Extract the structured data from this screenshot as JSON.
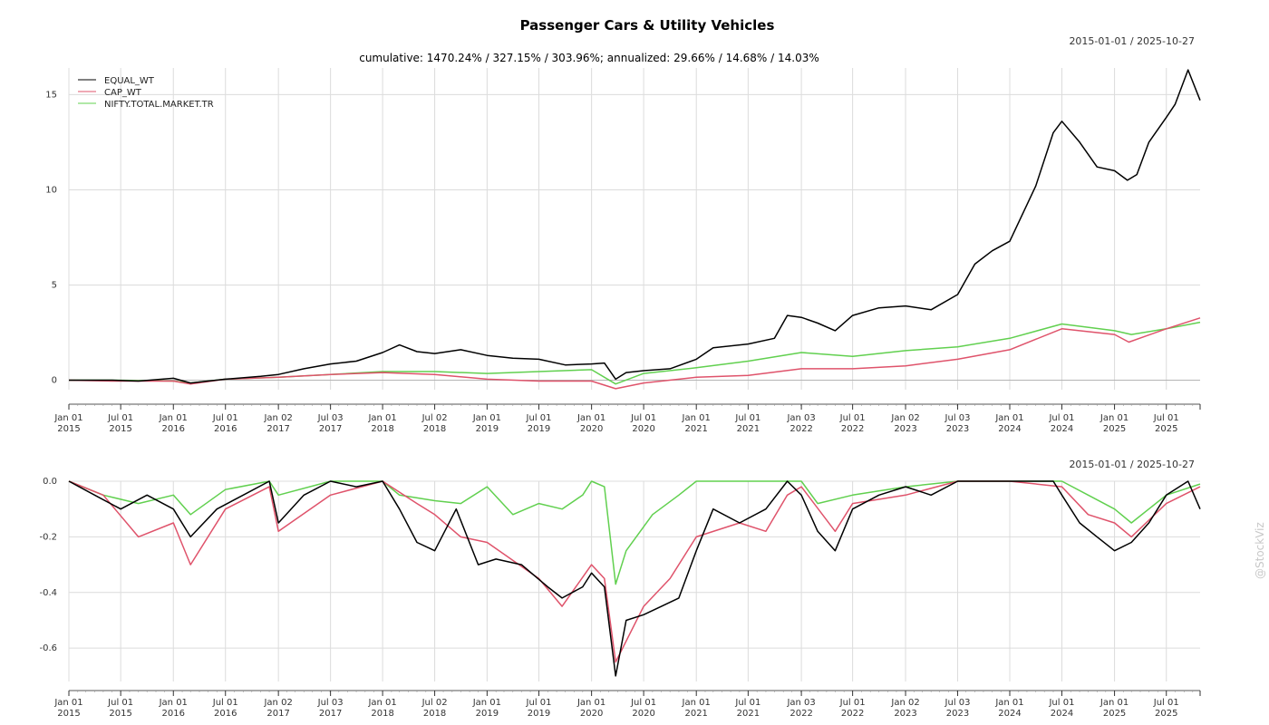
{
  "title": "Passenger Cars & Utility Vehicles",
  "subtitle": "cumulative: 1470.24% / 327.15% / 303.96%; annualized: 29.66% / 14.68% / 14.03%",
  "date_range": "2015-01-01 / 2025-10-27",
  "watermark": "@StockViz",
  "colors": {
    "EQUAL_WT": "#000000",
    "CAP_WT": "#df536b",
    "NIFTY.TOTAL.MARKET.TR": "#61d04f",
    "grid": "#dcdcdc"
  },
  "chart_data": [
    {
      "type": "line",
      "panel": "cumulative returns",
      "x_start": "2015-01-01",
      "x_end": "2025-10-27",
      "ylim": [
        -0.5,
        16.4
      ],
      "yticks": [
        0,
        5,
        10,
        15
      ],
      "ytick_labels": [
        "0",
        "5",
        "10",
        "15"
      ],
      "grid": true,
      "legend_position": "top-left",
      "xtick_labels": [
        [
          "Jan 01",
          "2015"
        ],
        [
          "Jul 01",
          "2015"
        ],
        [
          "Jan 01",
          "2016"
        ],
        [
          "Jul 01",
          "2016"
        ],
        [
          "Jan 02",
          "2017"
        ],
        [
          "Jul 03",
          "2017"
        ],
        [
          "Jan 01",
          "2018"
        ],
        [
          "Jul 02",
          "2018"
        ],
        [
          "Jan 01",
          "2019"
        ],
        [
          "Jul 01",
          "2019"
        ],
        [
          "Jan 01",
          "2020"
        ],
        [
          "Jul 01",
          "2020"
        ],
        [
          "Jan 01",
          "2021"
        ],
        [
          "Jul 01",
          "2021"
        ],
        [
          "Jan 03",
          "2022"
        ],
        [
          "Jul 01",
          "2022"
        ],
        [
          "Jan 02",
          "2023"
        ],
        [
          "Jul 03",
          "2023"
        ],
        [
          "Jan 01",
          "2024"
        ],
        [
          "Jul 01",
          "2024"
        ],
        [
          "Jan 01",
          "2025"
        ],
        [
          "Jul 01",
          "2025"
        ]
      ],
      "series": [
        {
          "name": "EQUAL_WT",
          "x": [
            "2015-01-01",
            "2015-06-01",
            "2015-09-01",
            "2016-01-01",
            "2016-03-01",
            "2016-07-01",
            "2016-11-01",
            "2017-01-02",
            "2017-04-01",
            "2017-07-03",
            "2017-10-01",
            "2018-01-01",
            "2018-03-01",
            "2018-05-01",
            "2018-07-02",
            "2018-10-01",
            "2019-01-01",
            "2019-04-01",
            "2019-07-01",
            "2019-10-01",
            "2020-01-01",
            "2020-02-15",
            "2020-03-25",
            "2020-05-01",
            "2020-07-01",
            "2020-10-01",
            "2021-01-01",
            "2021-03-01",
            "2021-07-01",
            "2021-10-01",
            "2021-11-15",
            "2022-01-03",
            "2022-03-01",
            "2022-05-01",
            "2022-07-01",
            "2022-10-01",
            "2023-01-02",
            "2023-04-01",
            "2023-07-03",
            "2023-09-01",
            "2023-11-01",
            "2024-01-01",
            "2024-04-01",
            "2024-06-01",
            "2024-07-01",
            "2024-09-01",
            "2024-11-01",
            "2025-01-01",
            "2025-02-15",
            "2025-03-20",
            "2025-05-01",
            "2025-07-01",
            "2025-08-01",
            "2025-09-15",
            "2025-10-27"
          ],
          "values": [
            0.0,
            0.0,
            -0.05,
            0.1,
            -0.15,
            0.05,
            0.2,
            0.3,
            0.6,
            0.85,
            1.0,
            1.45,
            1.85,
            1.5,
            1.4,
            1.6,
            1.3,
            1.15,
            1.1,
            0.8,
            0.85,
            0.9,
            0.05,
            0.4,
            0.5,
            0.6,
            1.1,
            1.7,
            1.9,
            2.2,
            3.4,
            3.3,
            3.0,
            2.6,
            3.4,
            3.8,
            3.9,
            3.7,
            4.5,
            6.1,
            6.8,
            7.3,
            10.2,
            13.0,
            13.6,
            12.5,
            11.2,
            11.0,
            10.5,
            10.8,
            12.5,
            13.8,
            14.5,
            16.3,
            14.7
          ]
        },
        {
          "name": "CAP_WT",
          "x": [
            "2015-01-01",
            "2015-06-01",
            "2016-01-01",
            "2016-03-01",
            "2016-07-01",
            "2017-01-02",
            "2017-07-03",
            "2018-01-01",
            "2018-07-02",
            "2019-01-01",
            "2019-07-01",
            "2020-01-01",
            "2020-03-25",
            "2020-07-01",
            "2021-01-01",
            "2021-07-01",
            "2022-01-03",
            "2022-07-01",
            "2023-01-02",
            "2023-07-03",
            "2024-01-01",
            "2024-07-01",
            "2025-01-01",
            "2025-02-20",
            "2025-07-01",
            "2025-10-27"
          ],
          "values": [
            0.0,
            -0.05,
            -0.05,
            -0.2,
            0.05,
            0.15,
            0.3,
            0.4,
            0.3,
            0.05,
            -0.05,
            -0.05,
            -0.45,
            -0.15,
            0.15,
            0.25,
            0.6,
            0.6,
            0.75,
            1.1,
            1.6,
            2.7,
            2.4,
            2.0,
            2.7,
            3.27
          ]
        },
        {
          "name": "NIFTY.TOTAL.MARKET.TR",
          "x": [
            "2015-01-01",
            "2015-06-01",
            "2016-01-01",
            "2016-03-01",
            "2016-07-01",
            "2017-01-02",
            "2017-07-03",
            "2018-01-01",
            "2018-07-02",
            "2019-01-01",
            "2019-07-01",
            "2020-01-01",
            "2020-03-25",
            "2020-07-01",
            "2021-01-01",
            "2021-07-01",
            "2022-01-03",
            "2022-07-01",
            "2023-01-02",
            "2023-07-03",
            "2024-01-01",
            "2024-07-01",
            "2025-01-01",
            "2025-03-01",
            "2025-07-01",
            "2025-10-27"
          ],
          "values": [
            0.0,
            0.0,
            -0.05,
            -0.15,
            0.05,
            0.15,
            0.3,
            0.45,
            0.45,
            0.35,
            0.45,
            0.55,
            -0.2,
            0.35,
            0.65,
            1.0,
            1.45,
            1.25,
            1.55,
            1.75,
            2.2,
            2.95,
            2.6,
            2.4,
            2.7,
            3.04
          ]
        }
      ]
    },
    {
      "type": "line",
      "panel": "drawdown",
      "x_start": "2015-01-01",
      "x_end": "2025-10-27",
      "ylim": [
        -0.72,
        0.0
      ],
      "yticks": [
        0.0,
        -0.2,
        -0.4,
        -0.6
      ],
      "ytick_labels": [
        "0.0",
        "-0.2",
        "-0.4",
        "-0.6"
      ],
      "grid": true,
      "xtick_labels": [
        [
          "Jan 01",
          "2015"
        ],
        [
          "Jul 01",
          "2015"
        ],
        [
          "Jan 01",
          "2016"
        ],
        [
          "Jul 01",
          "2016"
        ],
        [
          "Jan 02",
          "2017"
        ],
        [
          "Jul 03",
          "2017"
        ],
        [
          "Jan 01",
          "2018"
        ],
        [
          "Jul 02",
          "2018"
        ],
        [
          "Jan 01",
          "2019"
        ],
        [
          "Jul 01",
          "2019"
        ],
        [
          "Jan 01",
          "2020"
        ],
        [
          "Jul 01",
          "2020"
        ],
        [
          "Jan 01",
          "2021"
        ],
        [
          "Jul 01",
          "2021"
        ],
        [
          "Jan 03",
          "2022"
        ],
        [
          "Jul 01",
          "2022"
        ],
        [
          "Jan 02",
          "2023"
        ],
        [
          "Jul 03",
          "2023"
        ],
        [
          "Jan 01",
          "2024"
        ],
        [
          "Jul 01",
          "2024"
        ],
        [
          "Jan 01",
          "2025"
        ],
        [
          "Jul 01",
          "2025"
        ]
      ],
      "series": [
        {
          "name": "EQUAL_WT",
          "x": [
            "2015-01-01",
            "2015-04-01",
            "2015-07-01",
            "2015-10-01",
            "2016-01-01",
            "2016-03-01",
            "2016-06-01",
            "2016-09-01",
            "2016-12-01",
            "2017-01-02",
            "2017-04-01",
            "2017-07-03",
            "2017-10-01",
            "2018-01-01",
            "2018-03-01",
            "2018-05-01",
            "2018-07-02",
            "2018-09-15",
            "2018-12-01",
            "2019-02-01",
            "2019-05-01",
            "2019-08-01",
            "2019-09-20",
            "2019-12-01",
            "2020-01-01",
            "2020-02-15",
            "2020-03-25",
            "2020-05-01",
            "2020-07-01",
            "2020-09-01",
            "2020-11-01",
            "2021-01-01",
            "2021-03-01",
            "2021-06-01",
            "2021-09-01",
            "2021-11-15",
            "2022-01-03",
            "2022-03-01",
            "2022-05-01",
            "2022-07-01",
            "2022-10-01",
            "2023-01-02",
            "2023-04-01",
            "2023-07-03",
            "2024-01-01",
            "2024-06-01",
            "2024-07-01",
            "2024-09-01",
            "2024-11-01",
            "2025-01-01",
            "2025-03-01",
            "2025-05-01",
            "2025-07-01",
            "2025-09-15",
            "2025-10-27"
          ],
          "values": [
            0.0,
            -0.05,
            -0.1,
            -0.05,
            -0.1,
            -0.2,
            -0.1,
            -0.05,
            0.0,
            -0.15,
            -0.05,
            0.0,
            -0.02,
            0.0,
            -0.1,
            -0.22,
            -0.25,
            -0.1,
            -0.3,
            -0.28,
            -0.3,
            -0.38,
            -0.42,
            -0.38,
            -0.33,
            -0.38,
            -0.7,
            -0.5,
            -0.48,
            -0.45,
            -0.42,
            -0.25,
            -0.1,
            -0.15,
            -0.1,
            0.0,
            -0.05,
            -0.18,
            -0.25,
            -0.1,
            -0.05,
            -0.02,
            -0.05,
            0.0,
            0.0,
            0.0,
            -0.05,
            -0.15,
            -0.2,
            -0.25,
            -0.22,
            -0.15,
            -0.05,
            0.0,
            -0.1
          ]
        },
        {
          "name": "CAP_WT",
          "x": [
            "2015-01-01",
            "2015-05-01",
            "2015-09-01",
            "2016-01-01",
            "2016-03-01",
            "2016-07-01",
            "2016-12-01",
            "2017-01-02",
            "2017-07-03",
            "2018-01-01",
            "2018-05-01",
            "2018-07-02",
            "2018-10-01",
            "2019-01-01",
            "2019-07-01",
            "2019-09-20",
            "2020-01-01",
            "2020-02-15",
            "2020-03-25",
            "2020-07-01",
            "2020-10-01",
            "2021-01-01",
            "2021-06-01",
            "2021-09-01",
            "2021-11-15",
            "2022-01-03",
            "2022-05-01",
            "2022-07-01",
            "2023-01-02",
            "2023-07-03",
            "2024-01-01",
            "2024-07-01",
            "2024-10-01",
            "2025-01-01",
            "2025-03-01",
            "2025-07-01",
            "2025-10-27"
          ],
          "values": [
            0.0,
            -0.05,
            -0.2,
            -0.15,
            -0.3,
            -0.1,
            -0.02,
            -0.18,
            -0.05,
            0.0,
            -0.08,
            -0.12,
            -0.2,
            -0.22,
            -0.35,
            -0.45,
            -0.3,
            -0.35,
            -0.65,
            -0.45,
            -0.35,
            -0.2,
            -0.15,
            -0.18,
            -0.05,
            -0.02,
            -0.18,
            -0.08,
            -0.05,
            0.0,
            0.0,
            -0.02,
            -0.12,
            -0.15,
            -0.2,
            -0.08,
            -0.02
          ]
        },
        {
          "name": "NIFTY.TOTAL.MARKET.TR",
          "x": [
            "2015-01-01",
            "2015-05-01",
            "2015-09-01",
            "2016-01-01",
            "2016-03-01",
            "2016-07-01",
            "2016-12-01",
            "2017-01-02",
            "2017-07-03",
            "2018-01-01",
            "2018-03-01",
            "2018-07-02",
            "2018-10-01",
            "2019-01-01",
            "2019-04-01",
            "2019-07-01",
            "2019-09-20",
            "2019-12-01",
            "2020-01-01",
            "2020-02-15",
            "2020-03-25",
            "2020-05-01",
            "2020-08-01",
            "2020-11-01",
            "2021-01-01",
            "2021-06-01",
            "2022-01-03",
            "2022-03-01",
            "2022-07-01",
            "2023-01-02",
            "2023-07-03",
            "2024-01-01",
            "2024-07-01",
            "2024-10-01",
            "2025-01-01",
            "2025-03-01",
            "2025-07-01",
            "2025-10-27"
          ],
          "values": [
            0.0,
            -0.05,
            -0.08,
            -0.05,
            -0.12,
            -0.03,
            0.0,
            -0.05,
            0.0,
            0.0,
            -0.05,
            -0.07,
            -0.08,
            -0.02,
            -0.12,
            -0.08,
            -0.1,
            -0.05,
            0.0,
            -0.02,
            -0.37,
            -0.25,
            -0.12,
            -0.05,
            0.0,
            0.0,
            0.0,
            -0.08,
            -0.05,
            -0.02,
            0.0,
            0.0,
            0.0,
            -0.05,
            -0.1,
            -0.15,
            -0.05,
            -0.01
          ]
        }
      ]
    }
  ]
}
